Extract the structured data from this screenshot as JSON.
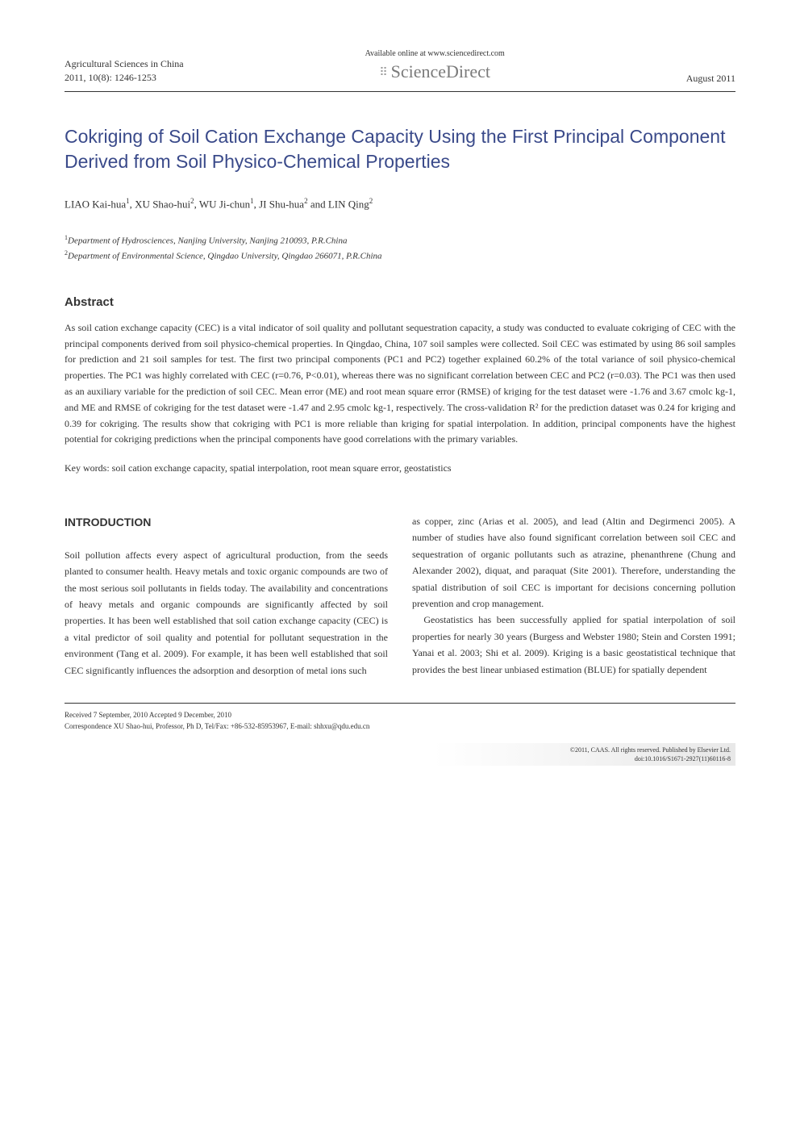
{
  "header": {
    "journal_name": "Agricultural Sciences in China",
    "issue_line": "2011, 10(8): 1246-1253",
    "available_line": "Available online at www.sciencedirect.com",
    "sd_brand": "ScienceDirect",
    "pub_date": "August 2011"
  },
  "title": "Cokriging of Soil Cation Exchange Capacity Using the First Principal Component Derived from Soil Physico-Chemical Properties",
  "authors_line_prefix": "LIAO Kai-hua",
  "authors": {
    "a1": "LIAO Kai-hua",
    "a1_sup": "1",
    "a2": ", XU Shao-hui",
    "a2_sup": "2",
    "a3": ", WU Ji-chun",
    "a3_sup": "1",
    "a4": ", JI Shu-hua",
    "a4_sup": "2",
    "a5": " and LIN Qing",
    "a5_sup": "2"
  },
  "affiliations": {
    "aff1_sup": "1",
    "aff1": "Department of Hydrosciences, Nanjing University, Nanjing 210093, P.R.China",
    "aff2_sup": "2",
    "aff2": "Department of Environmental Science, Qingdao University, Qingdao 266071, P.R.China"
  },
  "abstract": {
    "heading": "Abstract",
    "text": "As soil cation exchange capacity (CEC) is a vital indicator of soil quality and pollutant sequestration capacity, a study was conducted to evaluate cokriging of CEC with the principal components derived from soil physico-chemical properties. In Qingdao, China, 107 soil samples were collected. Soil CEC was estimated by using 86 soil samples for prediction and 21 soil samples for test. The first two principal components (PC1 and PC2) together explained 60.2% of the total variance of soil physico-chemical properties. The PC1 was highly correlated with CEC (r=0.76, P<0.01), whereas there was no significant correlation between CEC and PC2 (r=0.03). The PC1 was then used as an auxiliary variable for the prediction of soil CEC. Mean error (ME) and root mean square error (RMSE) of kriging for the test dataset were -1.76 and 3.67 cmolc kg-1, and ME and RMSE of cokriging for the test dataset were -1.47 and 2.95 cmolc kg-1, respectively. The cross-validation R² for the prediction dataset was 0.24 for kriging and 0.39 for cokriging. The results show that cokriging with PC1 is more reliable than kriging for spatial interpolation. In addition, principal components have the highest potential for cokriging predictions when the principal components have good correlations with the primary variables."
  },
  "keywords": {
    "label": "Key words:",
    "text": " soil cation exchange capacity, spatial interpolation, root mean square error, geostatistics"
  },
  "intro": {
    "heading": "INTRODUCTION",
    "col1_p1": "Soil pollution affects every aspect of agricultural production, from the seeds planted to consumer health. Heavy metals and toxic organic compounds are two of the most serious soil pollutants in fields today. The availability and concentrations of heavy metals and organic compounds are significantly affected by soil properties. It has been well established that soil cation exchange capacity (CEC) is a vital predictor of soil quality and potential for pollutant sequestration in the environment (Tang et al. 2009). For example, it has been well established that soil CEC significantly influences the adsorption and desorption of metal ions such",
    "col2_p1": "as copper, zinc (Arias et al. 2005), and lead (Altin and Degirmenci 2005). A number of studies have also found significant correlation between soil CEC and sequestration of organic pollutants such as atrazine, phenanthrene (Chung and Alexander 2002), diquat, and paraquat (Site 2001). Therefore, understanding the spatial distribution of soil CEC is important for decisions concerning pollution prevention and crop management.",
    "col2_p2": "Geostatistics has been successfully applied for spatial interpolation of soil properties for nearly 30 years (Burgess and Webster 1980; Stein and Corsten 1991; Yanai et al. 2003; Shi et al. 2009). Kriging is a basic geostatistical technique that provides the best linear unbiased estimation (BLUE) for spatially dependent"
  },
  "footer": {
    "received": "Received 7 September, 2010   Accepted 9 December, 2010",
    "correspondence": "Correspondence XU Shao-hui, Professor, Ph D, Tel/Fax: +86-532-85953967, E-mail: shhxu@qdu.edu.cn",
    "copyright1": "©2011, CAAS. All rights reserved. Published by Elsevier Ltd.",
    "copyright2": "doi:10.1016/S1671-2927(11)60116-8"
  },
  "colors": {
    "title_color": "#3a4a8a",
    "text_color": "#333333",
    "border_color": "#333333",
    "sd_color": "#7a7a7a"
  },
  "typography": {
    "title_fontsize": 23,
    "body_fontsize": 12,
    "header_fontsize": 12,
    "abstract_fontsize": 12,
    "footer_fontsize": 9
  }
}
